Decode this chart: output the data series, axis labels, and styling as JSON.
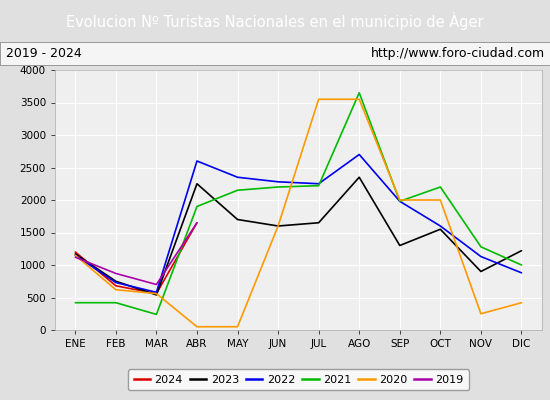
{
  "title": "Evolucion Nº Turistas Nacionales en el municipio de Àger",
  "subtitle_left": "2019 - 2024",
  "subtitle_right": "http://www.foro-ciudad.com",
  "months": [
    "ENE",
    "FEB",
    "MAR",
    "ABR",
    "MAY",
    "JUN",
    "JUL",
    "AGO",
    "SEP",
    "OCT",
    "NOV",
    "DIC"
  ],
  "series": {
    "2024": {
      "color": "#dd0000",
      "data": [
        1200,
        680,
        560,
        1650,
        null,
        null,
        null,
        null,
        null,
        null,
        null,
        null
      ]
    },
    "2023": {
      "color": "#000000",
      "data": [
        1170,
        750,
        540,
        2250,
        1700,
        1600,
        1650,
        2350,
        1300,
        1550,
        900,
        1220
      ]
    },
    "2022": {
      "color": "#0000ee",
      "data": [
        1150,
        730,
        580,
        2600,
        2350,
        2280,
        2250,
        2700,
        1980,
        1600,
        1130,
        880
      ]
    },
    "2021": {
      "color": "#00bb00",
      "data": [
        420,
        420,
        240,
        1900,
        2150,
        2200,
        2220,
        3650,
        1980,
        2200,
        1280,
        1000
      ]
    },
    "2020": {
      "color": "#ff9900",
      "data": [
        1150,
        620,
        560,
        50,
        50,
        1600,
        3550,
        3550,
        2000,
        2000,
        250,
        420
      ]
    },
    "2019": {
      "color": "#aa00aa",
      "data": [
        1120,
        870,
        700,
        1650,
        null,
        null,
        null,
        null,
        null,
        null,
        null,
        null
      ]
    }
  },
  "ylim": [
    0,
    4000
  ],
  "yticks": [
    0,
    500,
    1000,
    1500,
    2000,
    2500,
    3000,
    3500,
    4000
  ],
  "title_bg_color": "#4472c4",
  "title_text_color": "#ffffff",
  "plot_bg_color": "#efefef",
  "grid_color": "#ffffff",
  "outer_bg_color": "#e0e0e0"
}
